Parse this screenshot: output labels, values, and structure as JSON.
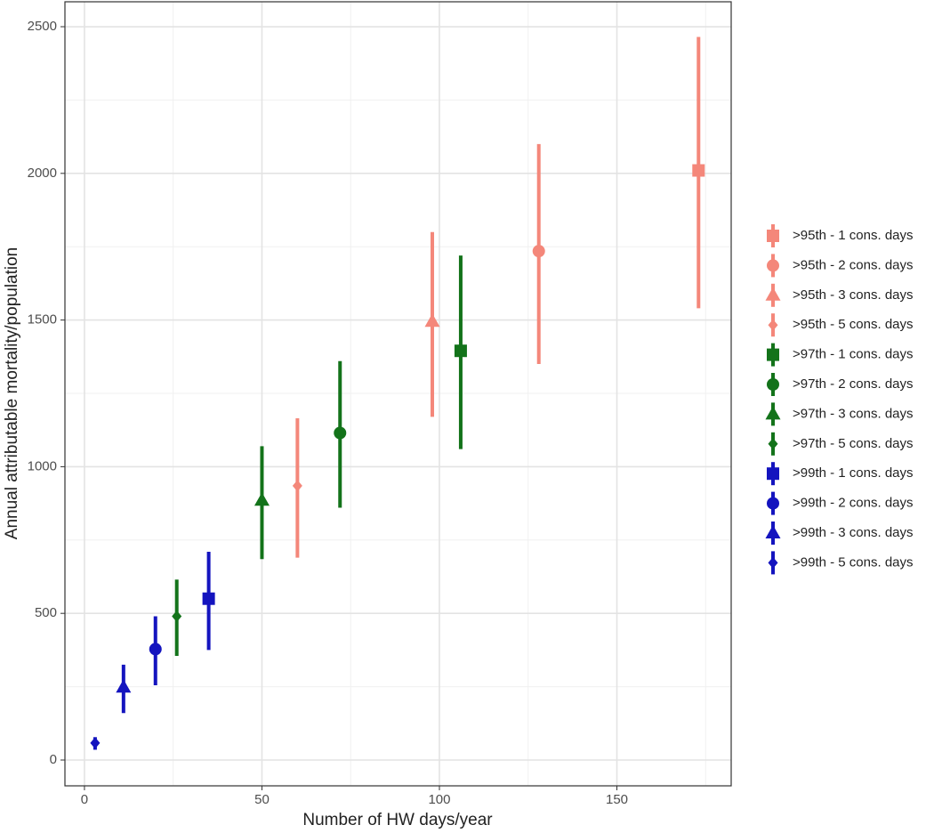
{
  "chart_data": {
    "type": "scatter",
    "x_label": "Number of HW days/year",
    "y_label": "Annual attributable mortality/population",
    "xlim": [
      -5.5,
      182.2
    ],
    "ylim": [
      -88,
      2585
    ],
    "xticks": [
      0,
      50,
      100,
      150
    ],
    "yticks": [
      0,
      500,
      1000,
      1500,
      2000,
      2500
    ],
    "x_minor_ticks": [
      25,
      75,
      125,
      175
    ],
    "y_minor_ticks": [
      250,
      750,
      1250,
      1750,
      2250
    ],
    "grid": true,
    "legend": "right",
    "series": [
      {
        "name": ">95th - 1 cons. days",
        "color": "#f4877a",
        "shape": "square",
        "x": [
          173
        ],
        "values": [
          2010
        ],
        "lower": [
          1540
        ],
        "upper": [
          2465
        ]
      },
      {
        "name": ">95th - 2 cons. days",
        "color": "#f4877a",
        "shape": "circle",
        "x": [
          128
        ],
        "values": [
          1735
        ],
        "lower": [
          1350
        ],
        "upper": [
          2100
        ]
      },
      {
        "name": ">95th - 3 cons. days",
        "color": "#f4877a",
        "shape": "triangle",
        "x": [
          98
        ],
        "values": [
          1495
        ],
        "lower": [
          1170
        ],
        "upper": [
          1800
        ]
      },
      {
        "name": ">95th - 5 cons. days",
        "color": "#f4877a",
        "shape": "diamond",
        "x": [
          60
        ],
        "values": [
          935
        ],
        "lower": [
          690
        ],
        "upper": [
          1165
        ]
      },
      {
        "name": ">97th - 1 cons. days",
        "color": "#13731a",
        "shape": "square",
        "x": [
          106
        ],
        "values": [
          1395
        ],
        "lower": [
          1060
        ],
        "upper": [
          1720
        ]
      },
      {
        "name": ">97th - 2 cons. days",
        "color": "#13731a",
        "shape": "circle",
        "x": [
          72
        ],
        "values": [
          1115
        ],
        "lower": [
          860
        ],
        "upper": [
          1360
        ]
      },
      {
        "name": ">97th - 3 cons. days",
        "color": "#13731a",
        "shape": "triangle",
        "x": [
          50
        ],
        "values": [
          885
        ],
        "lower": [
          685
        ],
        "upper": [
          1070
        ]
      },
      {
        "name": ">97th - 5 cons. days",
        "color": "#13731a",
        "shape": "diamond",
        "x": [
          26
        ],
        "values": [
          490
        ],
        "lower": [
          355
        ],
        "upper": [
          615
        ]
      },
      {
        "name": ">99th - 1 cons. days",
        "color": "#1414bf",
        "shape": "square",
        "x": [
          35
        ],
        "values": [
          550
        ],
        "lower": [
          375
        ],
        "upper": [
          710
        ]
      },
      {
        "name": ">99th - 2 cons. days",
        "color": "#1414bf",
        "shape": "circle",
        "x": [
          20
        ],
        "values": [
          378
        ],
        "lower": [
          255
        ],
        "upper": [
          490
        ]
      },
      {
        "name": ">99th - 3 cons. days",
        "color": "#1414bf",
        "shape": "triangle",
        "x": [
          11
        ],
        "values": [
          248
        ],
        "lower": [
          160
        ],
        "upper": [
          325
        ]
      },
      {
        "name": ">99th - 5 cons. days",
        "color": "#1414bf",
        "shape": "diamond",
        "x": [
          3
        ],
        "values": [
          58
        ],
        "lower": [
          35
        ],
        "upper": [
          78
        ]
      }
    ]
  }
}
